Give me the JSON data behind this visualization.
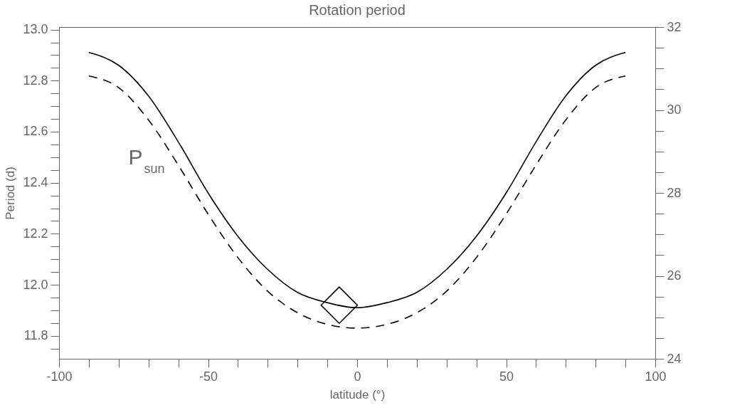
{
  "chart_data": {
    "type": "line",
    "title": "Rotation period",
    "xlabel": "latitude (°)",
    "ylabel": "Period (d)",
    "xlim": [
      -100,
      100
    ],
    "xticks": [
      -100,
      {
        "value": -90,
        "label": null
      },
      {
        "value": -80,
        "label": null
      },
      {
        "value": -70,
        "label": null
      },
      {
        "value": -60,
        "label": null
      },
      -50,
      {
        "value": -40,
        "label": null
      },
      {
        "value": -30,
        "label": null
      },
      {
        "value": -20,
        "label": null
      },
      {
        "value": -10,
        "label": null
      },
      0,
      {
        "value": 10,
        "label": null
      },
      {
        "value": 20,
        "label": null
      },
      {
        "value": 30,
        "label": null
      },
      {
        "value": 40,
        "label": null
      },
      50,
      {
        "value": 60,
        "label": null
      },
      {
        "value": 70,
        "label": null
      },
      {
        "value": 80,
        "label": null
      },
      {
        "value": 90,
        "label": null
      },
      100
    ],
    "ylim": [
      11.71,
      13.01
    ],
    "yticks": [
      {
        "value": 11.75,
        "label": null
      },
      11.8,
      {
        "value": 11.85,
        "label": null
      },
      {
        "value": 11.9,
        "label": null
      },
      {
        "value": 11.95,
        "label": null
      },
      {
        "value": 12.0,
        "label": "12.0"
      },
      {
        "value": 12.05,
        "label": null
      },
      {
        "value": 12.1,
        "label": null
      },
      {
        "value": 12.15,
        "label": null
      },
      12.2,
      {
        "value": 12.25,
        "label": null
      },
      {
        "value": 12.3,
        "label": null
      },
      {
        "value": 12.35,
        "label": null
      },
      12.4,
      {
        "value": 12.45,
        "label": null
      },
      {
        "value": 12.5,
        "label": null
      },
      {
        "value": 12.55,
        "label": null
      },
      12.6,
      {
        "value": 12.65,
        "label": null
      },
      {
        "value": 12.7,
        "label": null
      },
      {
        "value": 12.75,
        "label": null
      },
      12.8,
      {
        "value": 12.85,
        "label": null
      },
      {
        "value": 12.9,
        "label": null
      },
      {
        "value": 12.95,
        "label": null
      },
      {
        "value": 13.0,
        "label": "13.0"
      }
    ],
    "y2lim": [
      24,
      32
    ],
    "y2ticks": [
      24,
      {
        "value": 24.5,
        "label": null
      },
      {
        "value": 25,
        "label": null
      },
      {
        "value": 25.5,
        "label": null
      },
      26,
      {
        "value": 26.5,
        "label": null
      },
      {
        "value": 27,
        "label": null
      },
      {
        "value": 27.5,
        "label": null
      },
      28,
      {
        "value": 28.5,
        "label": null
      },
      {
        "value": 29,
        "label": null
      },
      {
        "value": 29.5,
        "label": null
      },
      30,
      {
        "value": 30.5,
        "label": null
      },
      {
        "value": 31,
        "label": null
      },
      {
        "value": 31.5,
        "label": null
      },
      32
    ],
    "x": [
      -90,
      -80,
      -70,
      -60,
      -50,
      -40,
      -30,
      -20,
      -10,
      0,
      10,
      20,
      30,
      40,
      50,
      60,
      70,
      80,
      90
    ],
    "series": [
      {
        "color": "#000000",
        "line_style": "solid",
        "values": [
          12.91,
          12.86,
          12.74,
          12.56,
          12.36,
          12.19,
          12.06,
          11.97,
          11.93,
          11.91,
          11.93,
          11.97,
          12.06,
          12.19,
          12.36,
          12.56,
          12.74,
          12.86,
          12.91
        ]
      },
      {
        "name": "P$_{sun}$",
        "color": "#000000",
        "line_style": "dashed",
        "axis": "y2",
        "values": [
          30.82,
          30.54,
          29.76,
          28.67,
          27.49,
          26.44,
          25.63,
          25.11,
          24.83,
          24.74,
          24.83,
          25.11,
          25.63,
          26.44,
          27.49,
          28.67,
          29.76,
          30.54,
          30.82
        ]
      },
      {
        "type": "scatter",
        "marker": "diamond",
        "color": "#000000",
        "x": [
          -6
        ],
        "values": [
          11.92
        ]
      }
    ],
    "grid": false,
    "legend": false
  }
}
